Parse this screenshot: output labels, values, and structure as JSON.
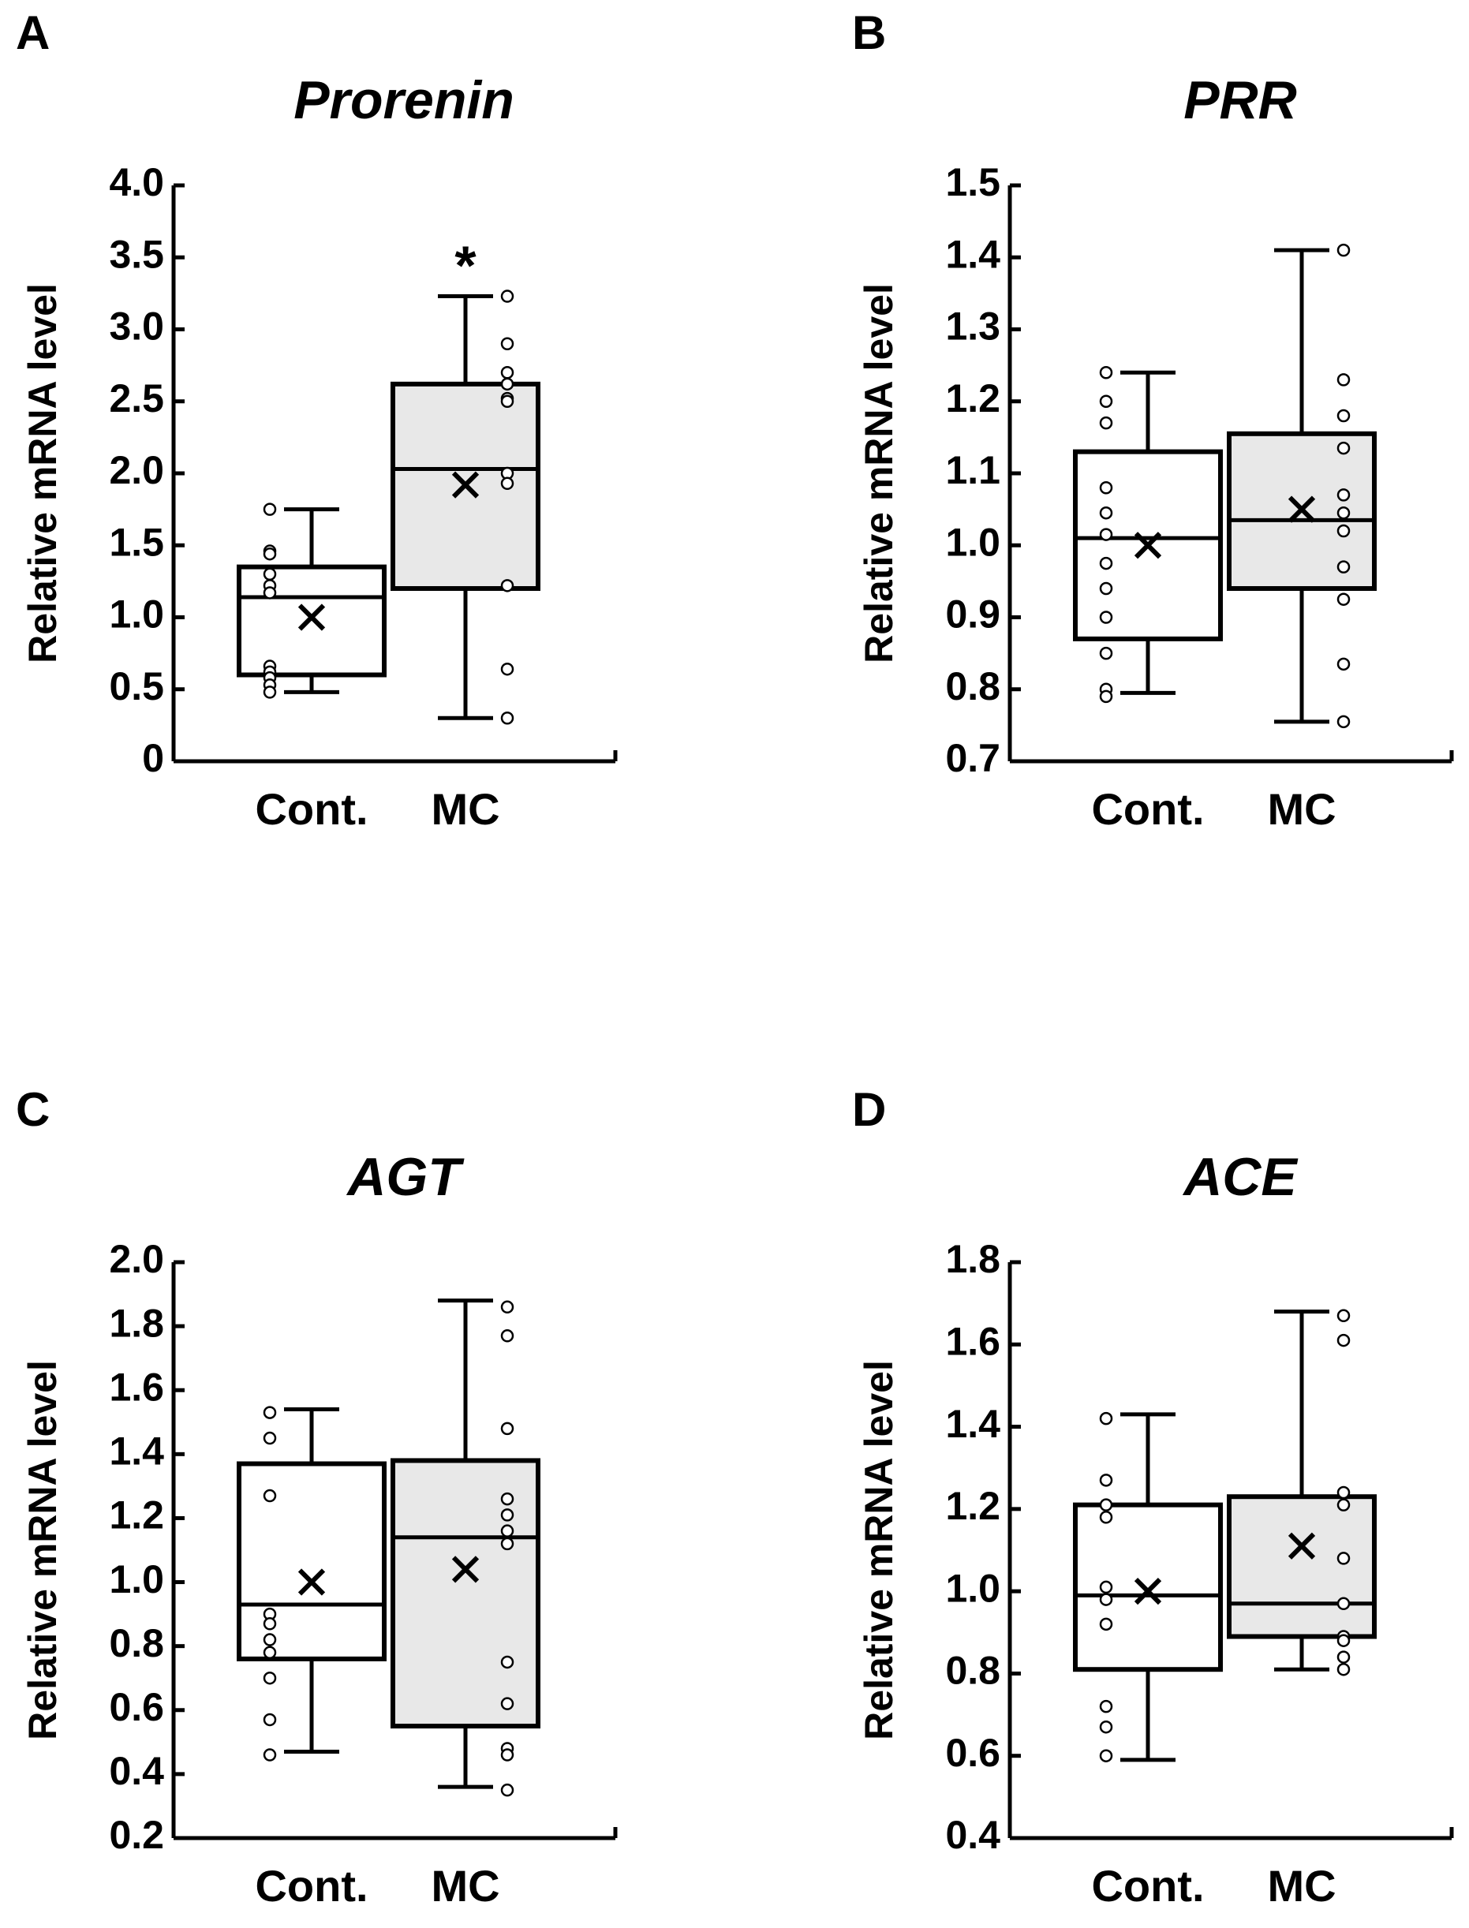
{
  "colors": {
    "control_fill": "#ffffff",
    "treated_fill": "#e8e8e8",
    "ink": "#000000"
  },
  "chart_data": [
    {
      "panel": "A",
      "title": "Prorenin",
      "type": "box",
      "ylabel": "Relative mRNA level",
      "ylim": [
        0,
        4.0
      ],
      "yticks": [
        "0",
        "0.5",
        "1.0",
        "1.5",
        "2.0",
        "2.5",
        "3.0",
        "3.5",
        "4.0"
      ],
      "categories": [
        "Cont.",
        "MC"
      ],
      "groups": [
        {
          "name": "Cont.",
          "min": 0.48,
          "q1": 0.6,
          "median": 1.14,
          "q3": 1.35,
          "max": 1.75,
          "mean": 1.0,
          "points": [
            1.75,
            1.46,
            1.44,
            1.3,
            1.22,
            1.17,
            0.66,
            0.62,
            0.58,
            0.53,
            0.48
          ]
        },
        {
          "name": "MC",
          "min": 0.3,
          "q1": 1.2,
          "median": 2.03,
          "q3": 2.62,
          "max": 3.23,
          "mean": 1.92,
          "points": [
            3.23,
            2.9,
            2.7,
            2.62,
            2.52,
            2.5,
            2.0,
            1.93,
            1.22,
            0.64,
            0.3
          ]
        }
      ],
      "annotation": "*"
    },
    {
      "panel": "B",
      "title": "PRR",
      "type": "box",
      "ylabel": "Relative mRNA level",
      "ylim": [
        0.7,
        1.5
      ],
      "yticks": [
        "0.7",
        "0.8",
        "0.9",
        "1.0",
        "1.1",
        "1.2",
        "1.3",
        "1.4",
        "1.5"
      ],
      "categories": [
        "Cont.",
        "MC"
      ],
      "groups": [
        {
          "name": "Cont.",
          "min": 0.795,
          "q1": 0.87,
          "median": 1.01,
          "q3": 1.13,
          "max": 1.24,
          "mean": 1.0,
          "points": [
            1.24,
            1.2,
            1.17,
            1.08,
            1.045,
            1.015,
            0.975,
            0.94,
            0.9,
            0.85,
            0.8,
            0.79
          ]
        },
        {
          "name": "MC",
          "min": 0.755,
          "q1": 0.94,
          "median": 1.035,
          "q3": 1.155,
          "max": 1.41,
          "mean": 1.05,
          "points": [
            1.41,
            1.23,
            1.18,
            1.135,
            1.07,
            1.045,
            1.02,
            0.97,
            0.925,
            0.835,
            0.755
          ]
        }
      ]
    },
    {
      "panel": "C",
      "title": "AGT",
      "type": "box",
      "ylabel": "Relative mRNA level",
      "ylim": [
        0.2,
        2.0
      ],
      "yticks": [
        "0.2",
        "0.4",
        "0.6",
        "0.8",
        "1.0",
        "1.2",
        "1.4",
        "1.6",
        "1.8",
        "2.0"
      ],
      "categories": [
        "Cont.",
        "MC"
      ],
      "groups": [
        {
          "name": "Cont.",
          "min": 0.47,
          "q1": 0.76,
          "median": 0.93,
          "q3": 1.37,
          "max": 1.54,
          "mean": 1.0,
          "points": [
            1.53,
            1.45,
            1.27,
            0.9,
            0.87,
            0.82,
            0.78,
            0.7,
            0.57,
            0.46
          ]
        },
        {
          "name": "MC",
          "min": 0.36,
          "q1": 0.55,
          "median": 1.14,
          "q3": 1.38,
          "max": 1.88,
          "mean": 1.04,
          "points": [
            1.86,
            1.77,
            1.48,
            1.26,
            1.21,
            1.16,
            1.12,
            0.75,
            0.62,
            0.48,
            0.46,
            0.35
          ]
        }
      ]
    },
    {
      "panel": "D",
      "title": "ACE",
      "type": "box",
      "ylabel": "Relative mRNA level",
      "ylim": [
        0.4,
        1.8
      ],
      "yticks": [
        "0.4",
        "0.6",
        "0.8",
        "1.0",
        "1.2",
        "1.4",
        "1.6",
        "1.8"
      ],
      "categories": [
        "Cont.",
        "MC"
      ],
      "groups": [
        {
          "name": "Cont.",
          "min": 0.59,
          "q1": 0.81,
          "median": 0.99,
          "q3": 1.21,
          "max": 1.43,
          "mean": 1.0,
          "points": [
            1.42,
            1.27,
            1.21,
            1.18,
            1.01,
            0.98,
            0.92,
            0.72,
            0.67,
            0.6
          ]
        },
        {
          "name": "MC",
          "min": 0.81,
          "q1": 0.89,
          "median": 0.97,
          "q3": 1.23,
          "max": 1.68,
          "mean": 1.11,
          "points": [
            1.67,
            1.61,
            1.24,
            1.21,
            1.08,
            0.97,
            0.89,
            0.88,
            0.84,
            0.81
          ]
        }
      ]
    }
  ]
}
